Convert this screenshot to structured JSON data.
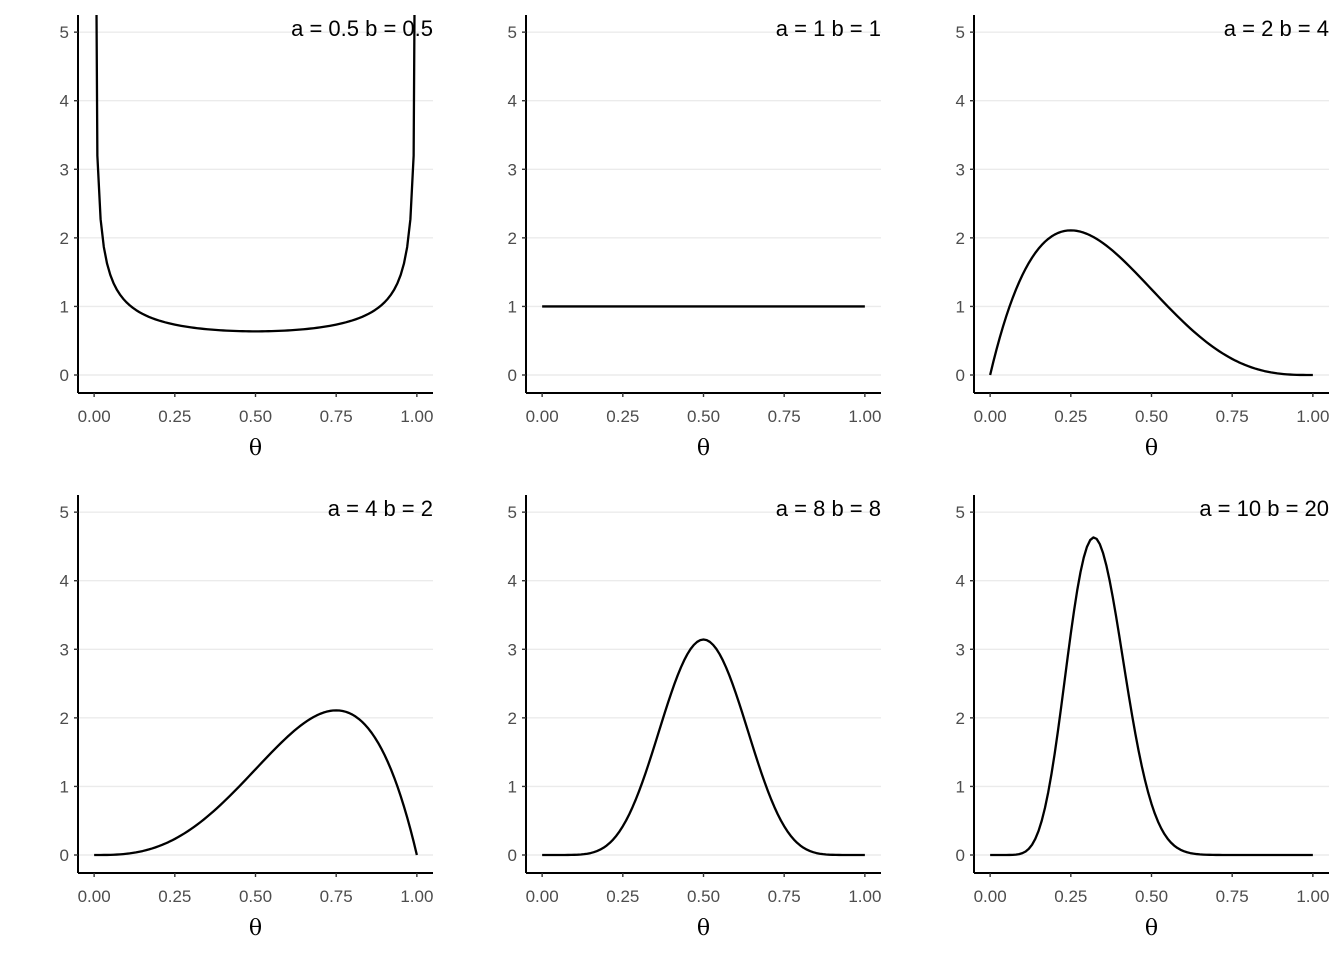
{
  "chart_data": {
    "type": "line",
    "layout": "facet-grid 2 rows x 3 columns",
    "description_of_series": "Beta(a, b) probability density over theta",
    "xlabel": "θ",
    "ylabel": "",
    "xlim": [
      0,
      1
    ],
    "ylim": [
      0,
      5.25
    ],
    "x_ticks": [
      "0.00",
      "0.25",
      "0.50",
      "0.75",
      "1.00"
    ],
    "x_tick_values": [
      0,
      0.25,
      0.5,
      0.75,
      1
    ],
    "y_ticks": [
      "0",
      "1",
      "2",
      "3",
      "4",
      "5"
    ],
    "y_tick_values": [
      0,
      1,
      2,
      3,
      4,
      5
    ],
    "grid": "horizontal major only",
    "n_points": 101,
    "panels": [
      {
        "title": "a = 0.5 b = 0.5",
        "a": 0.5,
        "b": 0.5
      },
      {
        "title": "a = 1 b = 1",
        "a": 1,
        "b": 1
      },
      {
        "title": "a = 2 b = 4",
        "a": 2,
        "b": 4
      },
      {
        "title": "a = 4 b = 2",
        "a": 4,
        "b": 2
      },
      {
        "title": "a = 8 b = 8",
        "a": 8,
        "b": 8
      },
      {
        "title": "a = 10 b = 20",
        "a": 10,
        "b": 20
      }
    ],
    "line_color": "#000000",
    "grid_color": "#ebebeb"
  }
}
